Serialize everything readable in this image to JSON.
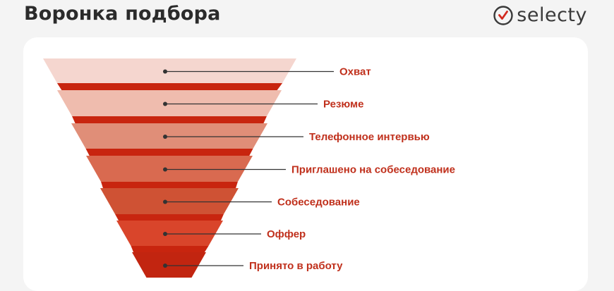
{
  "header": {
    "title": "Воронка подбора",
    "logo_text": "selecty",
    "logo_icon": "check-circle-icon"
  },
  "colors": {
    "label": "#c0301c",
    "connector": "#333333",
    "back_segment": "#c8250f"
  },
  "funnel": {
    "stages": [
      {
        "label": "Охват",
        "color": "#f5d6cf"
      },
      {
        "label": "Резюме",
        "color": "#efbcae"
      },
      {
        "label": "Телефонное интервью",
        "color": "#e08e78"
      },
      {
        "label": "Приглашено на собеседование",
        "color": "#d96a50"
      },
      {
        "label": "Собеседование",
        "color": "#cf5234"
      },
      {
        "label": "Оффер",
        "color": "#d9452b"
      },
      {
        "label": "Принято в работу",
        "color": "#c22510"
      }
    ]
  }
}
